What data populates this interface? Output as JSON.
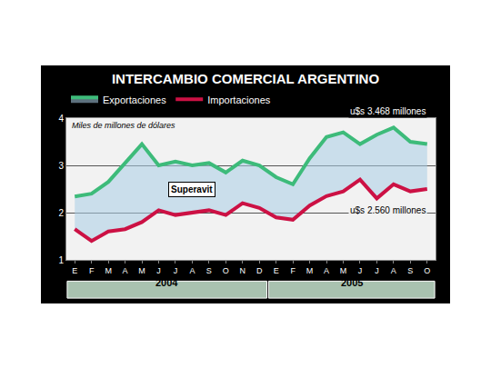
{
  "chart_data": {
    "type": "line",
    "title": "INTERCAMBIO COMERCIAL ARGENTINO",
    "ylabel": "Miles de millones de dólares",
    "categories": [
      "E",
      "F",
      "M",
      "A",
      "M",
      "J",
      "J",
      "A",
      "S",
      "O",
      "N",
      "D",
      "E",
      "F",
      "M",
      "A",
      "M",
      "J",
      "J",
      "A",
      "S",
      "O"
    ],
    "groups": [
      {
        "label": "2004",
        "from": 0,
        "to": 11
      },
      {
        "label": "2005",
        "from": 12,
        "to": 21
      }
    ],
    "series": [
      {
        "name": "Exportaciones",
        "color": "#3dbb7a",
        "values": [
          2.34,
          2.4,
          2.65,
          3.05,
          3.45,
          3.0,
          3.08,
          3.0,
          3.05,
          2.85,
          3.1,
          3.0,
          2.75,
          2.6,
          3.15,
          3.6,
          3.7,
          3.45,
          3.65,
          3.8,
          3.5,
          3.45
        ]
      },
      {
        "name": "Importaciones",
        "color": "#cc1144",
        "values": [
          1.65,
          1.4,
          1.6,
          1.65,
          1.8,
          2.05,
          1.95,
          2.0,
          2.05,
          1.95,
          2.2,
          2.1,
          1.9,
          1.85,
          2.15,
          2.35,
          2.45,
          2.7,
          2.3,
          2.6,
          2.45,
          2.5
        ]
      }
    ],
    "annotations": {
      "surplus": "Superavit",
      "exports_last": "u$s 3.468 millones",
      "imports_last": "u$s 2.560 millones"
    },
    "ylim": [
      1,
      4
    ],
    "yticks": [
      1,
      2,
      3,
      4
    ],
    "grid": true,
    "legend": "top"
  }
}
